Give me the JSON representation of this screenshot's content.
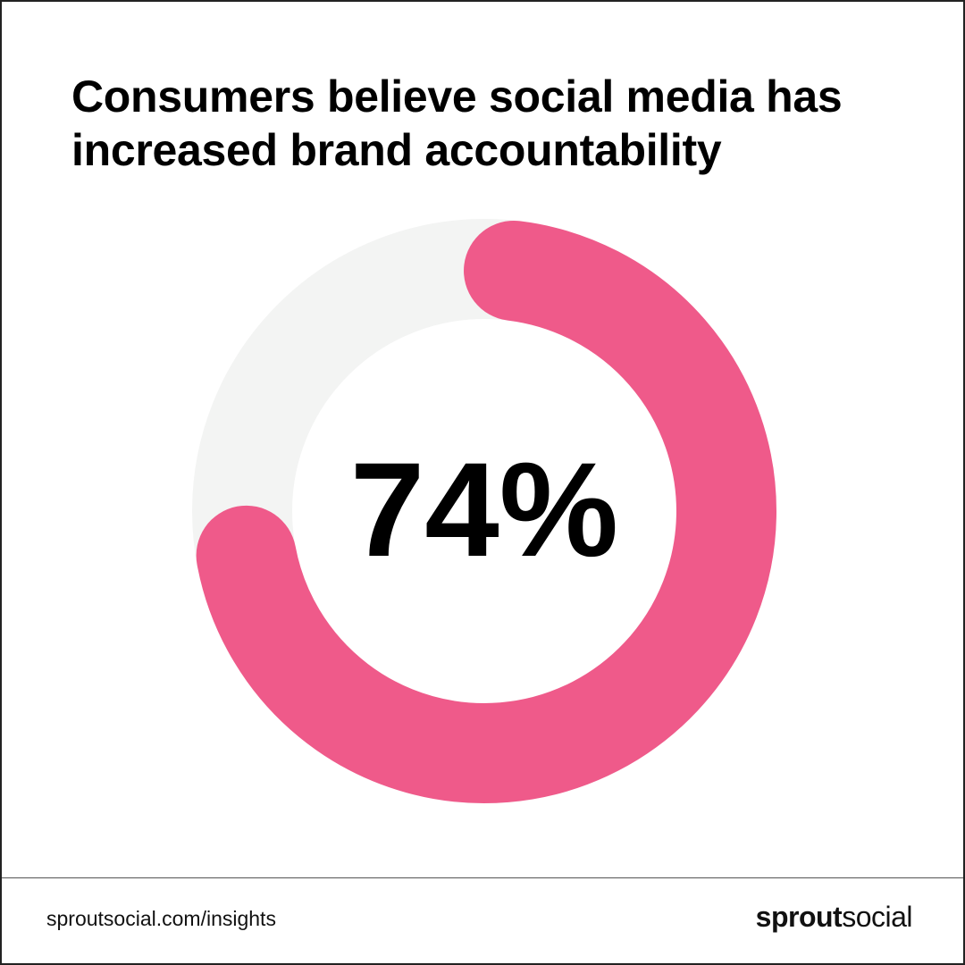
{
  "title": "Consumers believe social media has increased brand accountability",
  "chart_data": {
    "type": "pie",
    "variant": "donut",
    "values": [
      74,
      26
    ],
    "center_label": "74%",
    "colors": [
      "#EF5A8A",
      "#F3F4F3"
    ]
  },
  "footer": {
    "url": "sproutsocial.com/insights",
    "logo_bold": "sprout",
    "logo_light": "social"
  }
}
